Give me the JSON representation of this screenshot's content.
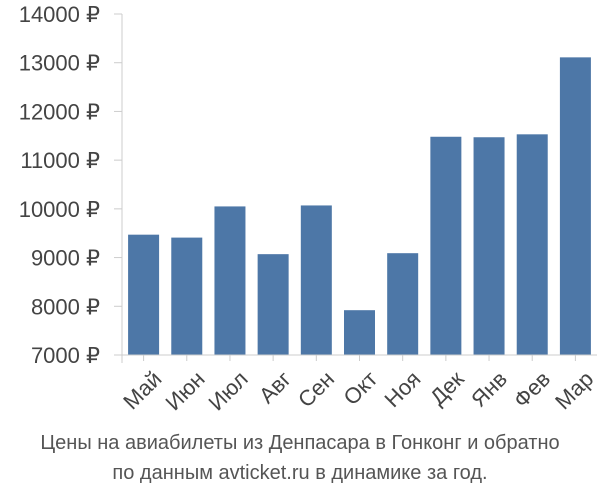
{
  "chart_data": {
    "type": "bar",
    "title": "",
    "xlabel": "",
    "ylabel": "",
    "categories": [
      "Май",
      "Июн",
      "Июл",
      "Авг",
      "Сен",
      "Окт",
      "Ноя",
      "Дек",
      "Янв",
      "Фев",
      "Мар"
    ],
    "values": [
      9470,
      9410,
      10050,
      9070,
      10070,
      7920,
      9090,
      11480,
      11470,
      11530,
      13110
    ],
    "ylim": [
      7000,
      14000
    ],
    "yticks": [
      7000,
      8000,
      9000,
      10000,
      11000,
      12000,
      13000,
      14000
    ],
    "ytick_labels": [
      "7000 ₽",
      "8000 ₽",
      "9000 ₽",
      "10000 ₽",
      "11000 ₽",
      "12000 ₽",
      "13000 ₽",
      "14000 ₽"
    ],
    "grid": false,
    "bar_color": "#4d77a7",
    "axis_color": "#cccccc"
  },
  "caption": {
    "line1": "Цены на авиабилеты из Денпасара в Гонконг и обратно",
    "line2": "по данным avticket.ru в динамике за год."
  }
}
